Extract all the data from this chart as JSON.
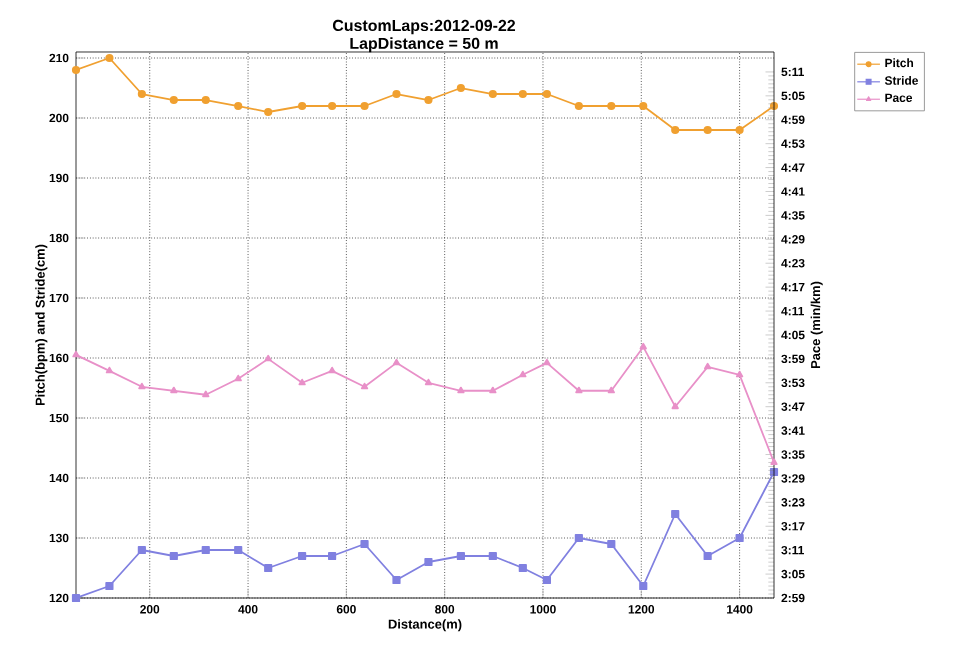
{
  "chart_data": {
    "type": "line",
    "title": "CustomLaps:2012-09-22",
    "subtitle": "LapDistance = 50 m",
    "xlabel": "Distance(m)",
    "ylabel": "Pitch(bpm) and Stride(cm)",
    "y2label": "Pace (min/km)",
    "x": [
      50,
      118,
      184,
      249,
      314,
      380,
      441,
      510,
      571,
      637,
      702,
      767,
      833,
      898,
      959,
      1008,
      1073,
      1139,
      1204,
      1269,
      1335,
      1400,
      1470
    ],
    "series": [
      {
        "name": "Pitch",
        "color": "#f0a030",
        "marker": "circle",
        "values": [
          208,
          210,
          204,
          203,
          203,
          202,
          201,
          202,
          202,
          202,
          204,
          203,
          205,
          204,
          204,
          204,
          202,
          202,
          202,
          198,
          198,
          198,
          202
        ]
      },
      {
        "name": "Stride",
        "color": "#8080e0",
        "marker": "square",
        "values": [
          120,
          122,
          128,
          127,
          128,
          128,
          125,
          127,
          127,
          129,
          123,
          126,
          127,
          127,
          125,
          123,
          130,
          129,
          122,
          134,
          127,
          130,
          141
        ]
      },
      {
        "name": "Pace",
        "color": "#e890c8",
        "marker": "triangle",
        "axis": "y2",
        "values": [
          240,
          236,
          232,
          231,
          230,
          234,
          239,
          233,
          236,
          232,
          238,
          233,
          231,
          231,
          235,
          238,
          231,
          231,
          242,
          227,
          237,
          235,
          213
        ]
      }
    ],
    "xlim": [
      50,
      1470
    ],
    "xticks": [
      200,
      400,
      600,
      800,
      1000,
      1200,
      1400
    ],
    "ylim": [
      120,
      211
    ],
    "yticks": [
      120,
      130,
      140,
      150,
      160,
      170,
      180,
      190,
      200,
      210
    ],
    "y2lim": [
      179,
      316
    ],
    "y2ticks": [
      {
        "value": 179,
        "label": "2:59"
      },
      {
        "value": 185,
        "label": "3:05"
      },
      {
        "value": 191,
        "label": "3:11"
      },
      {
        "value": 197,
        "label": "3:17"
      },
      {
        "value": 203,
        "label": "3:23"
      },
      {
        "value": 209,
        "label": "3:29"
      },
      {
        "value": 215,
        "label": "3:35"
      },
      {
        "value": 221,
        "label": "3:41"
      },
      {
        "value": 227,
        "label": "3:47"
      },
      {
        "value": 233,
        "label": "3:53"
      },
      {
        "value": 239,
        "label": "3:59"
      },
      {
        "value": 245,
        "label": "4:05"
      },
      {
        "value": 251,
        "label": "4:11"
      },
      {
        "value": 257,
        "label": "4:17"
      },
      {
        "value": 263,
        "label": "4:23"
      },
      {
        "value": 269,
        "label": "4:29"
      },
      {
        "value": 275,
        "label": "4:35"
      },
      {
        "value": 281,
        "label": "4:41"
      },
      {
        "value": 287,
        "label": "4:47"
      },
      {
        "value": 293,
        "label": "4:53"
      },
      {
        "value": 299,
        "label": "4:59"
      },
      {
        "value": 305,
        "label": "5:05"
      },
      {
        "value": 311,
        "label": "5:11"
      }
    ],
    "grid": true,
    "legend": "top right",
    "line_style": "solid"
  }
}
